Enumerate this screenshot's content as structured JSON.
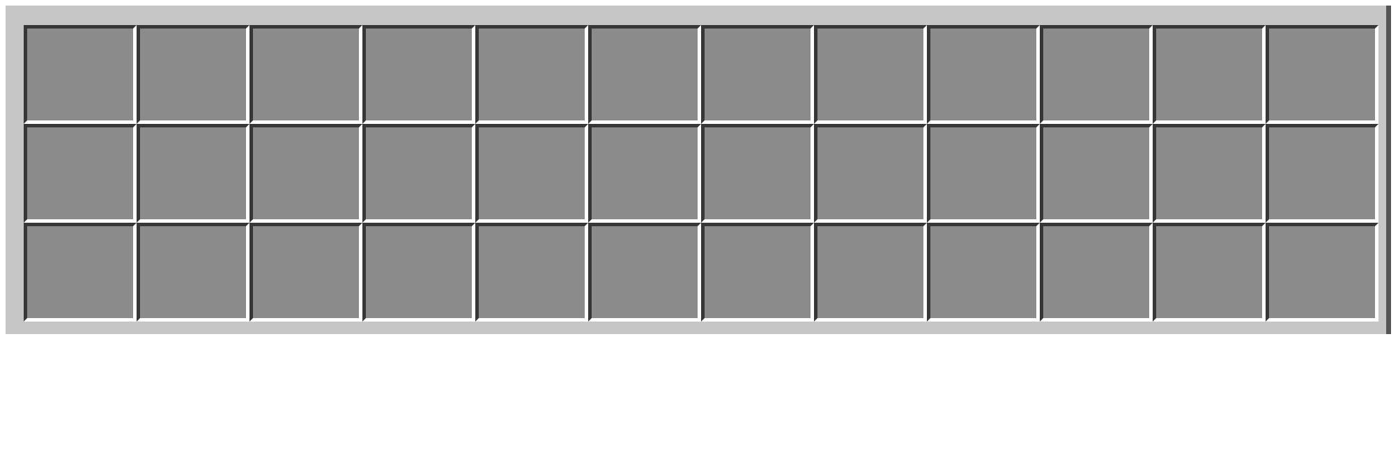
{
  "inventory": {
    "rows": 3,
    "columns": 12,
    "slots": [
      [
        {
          "item": ""
        },
        {
          "item": ""
        },
        {
          "item": ""
        },
        {
          "item": ""
        },
        {
          "item": ""
        },
        {
          "item": ""
        },
        {
          "item": ""
        },
        {
          "item": ""
        },
        {
          "item": ""
        },
        {
          "item": ""
        },
        {
          "item": ""
        },
        {
          "item": ""
        }
      ],
      [
        {
          "item": ""
        },
        {
          "item": ""
        },
        {
          "item": ""
        },
        {
          "item": ""
        },
        {
          "item": ""
        },
        {
          "item": ""
        },
        {
          "item": ""
        },
        {
          "item": ""
        },
        {
          "item": ""
        },
        {
          "item": ""
        },
        {
          "item": ""
        },
        {
          "item": ""
        }
      ],
      [
        {
          "item": ""
        },
        {
          "item": ""
        },
        {
          "item": ""
        },
        {
          "item": ""
        },
        {
          "item": ""
        },
        {
          "item": ""
        },
        {
          "item": ""
        },
        {
          "item": ""
        },
        {
          "item": ""
        },
        {
          "item": ""
        },
        {
          "item": ""
        },
        {
          "item": ""
        }
      ]
    ]
  },
  "colors": {
    "panel_background": "#c6c6c6",
    "slot_fill": "#8b8b8b",
    "slot_shadow": "#373737",
    "slot_highlight": "#ffffff"
  }
}
